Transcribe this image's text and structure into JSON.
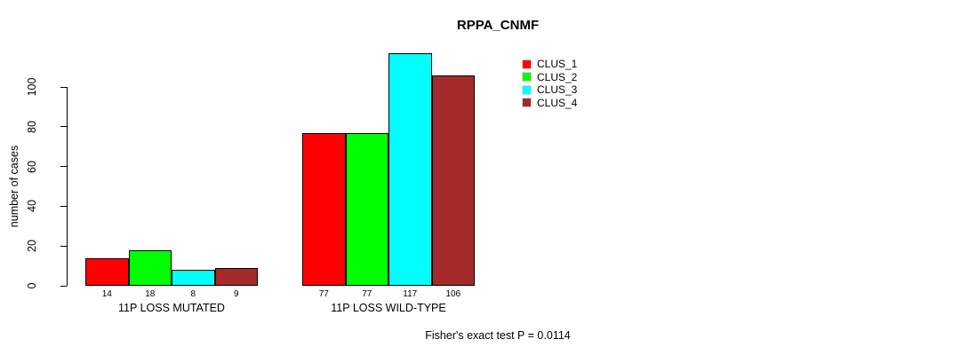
{
  "chart_data": {
    "type": "bar",
    "title": "RPPA_CNMF",
    "ylabel": "number of cases",
    "xlabel": "",
    "categories": [
      "11P LOSS MUTATED",
      "11P LOSS WILD-TYPE"
    ],
    "series": [
      {
        "name": "CLUS_1",
        "color": "#ff0000",
        "values": [
          14,
          77
        ]
      },
      {
        "name": "CLUS_2",
        "color": "#00ff00",
        "values": [
          18,
          77
        ]
      },
      {
        "name": "CLUS_3",
        "color": "#00ffff",
        "values": [
          8,
          117
        ]
      },
      {
        "name": "CLUS_4",
        "color": "#a52a2a",
        "values": [
          9,
          106
        ]
      }
    ],
    "bar_value_labels": [
      [
        "14",
        "18",
        "8",
        "9"
      ],
      [
        "77",
        "77",
        "117",
        "106"
      ]
    ],
    "yticks": [
      0,
      20,
      40,
      60,
      80,
      100
    ],
    "ylim": [
      0,
      120
    ],
    "grid": false,
    "legend_position": "top-right",
    "legend_entries": [
      "CLUS_1",
      "CLUS_2",
      "CLUS_3",
      "CLUS_4"
    ],
    "annotation": "Fisher's exact test P = 0.0114"
  }
}
